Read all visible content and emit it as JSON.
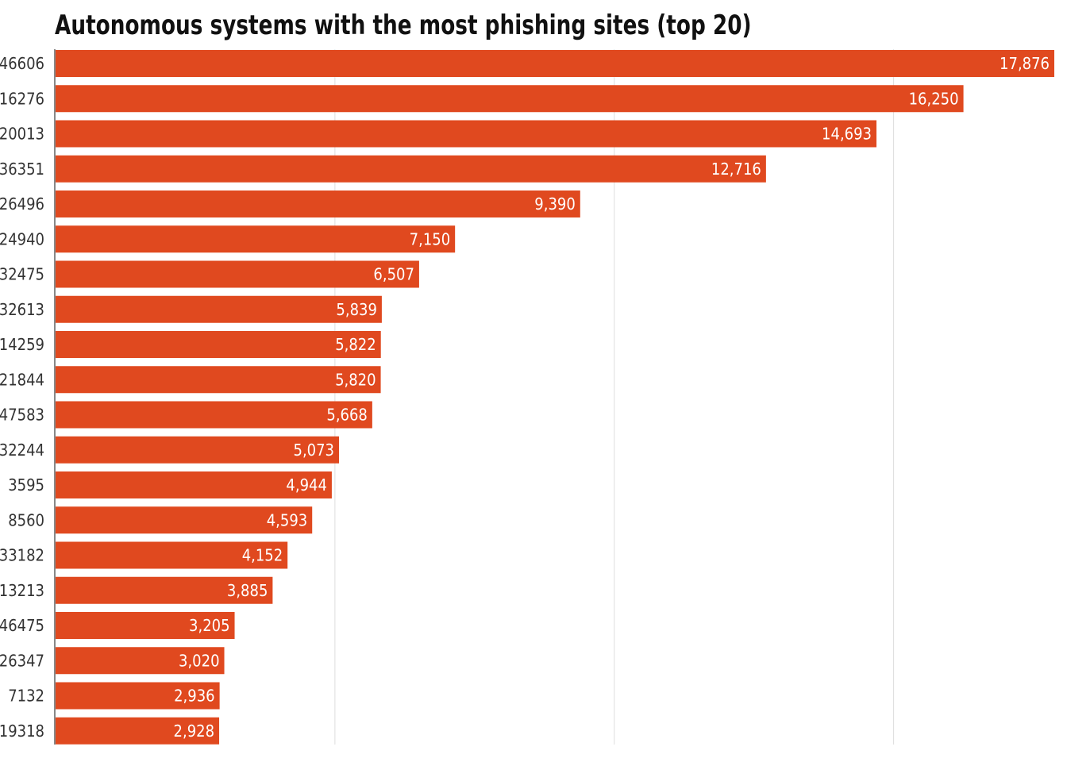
{
  "chart_data": {
    "type": "bar",
    "orientation": "horizontal",
    "title": "Autonomous systems with the most phishing sites (top 20)",
    "categories": [
      "46606",
      "16276",
      "20013",
      "36351",
      "26496",
      "24940",
      "32475",
      "32613",
      "14259",
      "21844",
      "47583",
      "32244",
      "3595",
      "8560",
      "33182",
      "13213",
      "46475",
      "26347",
      "7132",
      "19318"
    ],
    "values": [
      17876,
      16250,
      14693,
      12716,
      9390,
      7150,
      6507,
      5839,
      5822,
      5820,
      5668,
      5073,
      4944,
      4593,
      4152,
      3885,
      3205,
      3020,
      2936,
      2928
    ],
    "value_labels": [
      "17,876",
      "16,250",
      "14,693",
      "12,716",
      "9,390",
      "7,150",
      "6,507",
      "5,839",
      "5,822",
      "5,820",
      "5,668",
      "5,073",
      "4,944",
      "4,593",
      "4,152",
      "3,885",
      "3,205",
      "3,020",
      "2,936",
      "2,928"
    ],
    "xlim": [
      0,
      17876
    ],
    "xgrid": [
      5000,
      10000,
      15000
    ],
    "grid": true,
    "legend": "none",
    "bar_color": "#e0491f"
  }
}
